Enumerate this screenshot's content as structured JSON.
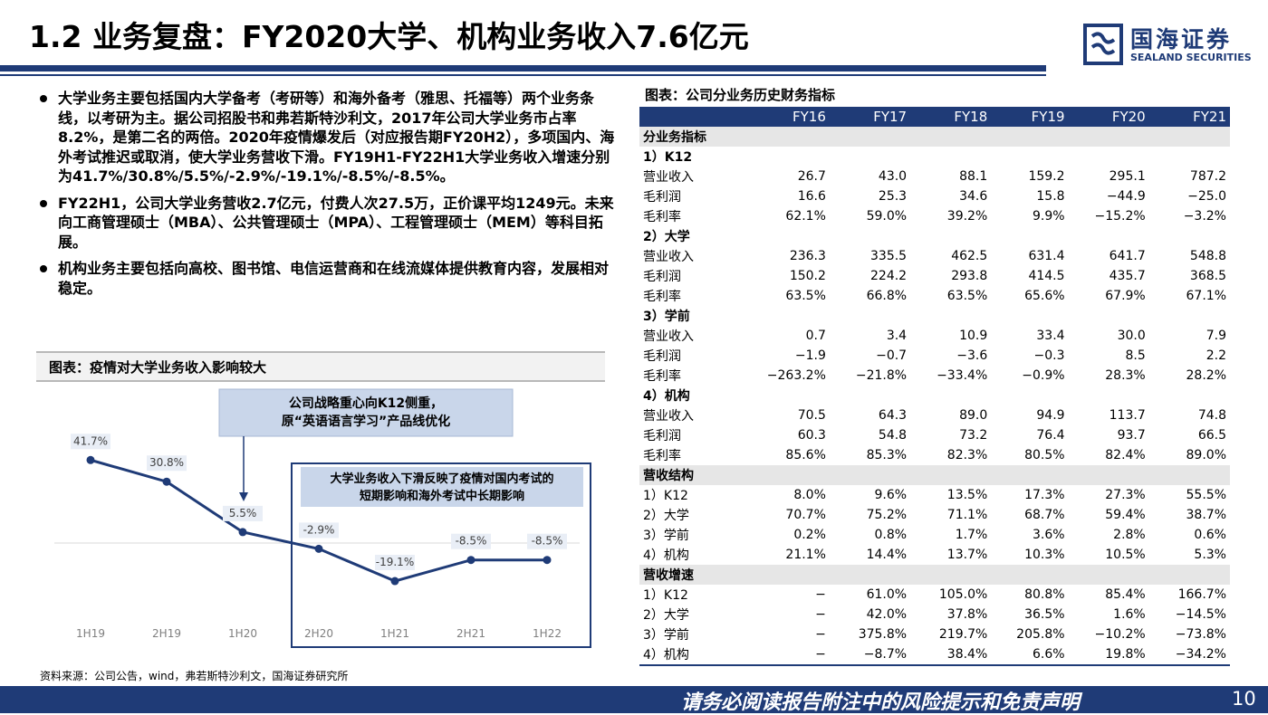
{
  "header": {
    "title": "1.2 业务复盘：FY2020大学、机构业务收入7.6亿元",
    "logo_cn": "国海证券",
    "logo_en": "SEALAND SECURITIES"
  },
  "bullets": [
    "大学业务主要包括国内大学备考（考研等）和海外备考（雅思、托福等）两个业务条线，以考研为主。据公司招股书和弗若斯特沙利文，2017年公司大学业务市占率8.2%，是第二名的两倍。2020年疫情爆发后（对应报告期FY20H2），多项国内、海外考试推迟或取消，使大学业务营收下滑。FY19H1-FY22H1大学业务收入增速分别为41.7%/30.8%/5.5%/-2.9%/-19.1%/-8.5%/-8.5%。",
    "FY22H1，公司大学业务营收2.7亿元，付费人次27.5万，正价课平均1249元。未来向工商管理硕士（MBA）、公共管理硕士（MPA）、工程管理硕士（MEM）等科目拓展。",
    "机构业务主要包括向高校、图书馆、电信运营商和在线流媒体提供教育内容，发展相对稳定。"
  ],
  "chart": {
    "heading": "图表：疫情对大学业务收入影响较大",
    "callout1": [
      "公司战略重心向K12侧重，",
      "原“英语语言学习”产品线优化"
    ],
    "callout2": [
      "大学业务收入下滑反映了疫情对国内考试的",
      "短期影响和海外考试中长期影响"
    ],
    "source": "资料来源：公司公告，wind，弗若斯特沙利文，国海证券研究所"
  },
  "chart_data": {
    "type": "line",
    "categories": [
      "1H19",
      "2H19",
      "1H20",
      "2H20",
      "1H21",
      "2H21",
      "1H22"
    ],
    "values": [
      41.7,
      30.8,
      5.5,
      -2.9,
      -19.1,
      -8.5,
      -8.5
    ],
    "labels": [
      "41.7%",
      "30.8%",
      "5.5%",
      "-2.9%",
      "-19.1%",
      "-8.5%",
      "-8.5%"
    ],
    "color": "#1f3b77"
  },
  "table": {
    "title": "图表：公司分业务历史财务指标",
    "columns": [
      "FY16",
      "FY17",
      "FY18",
      "FY19",
      "FY20",
      "FY21"
    ],
    "rows": [
      {
        "kind": "section",
        "label": "分业务指标",
        "values": []
      },
      {
        "kind": "sub",
        "label": "1）K12",
        "values": []
      },
      {
        "kind": "data",
        "label": "营业收入",
        "values": [
          "26.7",
          "43.0",
          "88.1",
          "159.2",
          "295.1",
          "787.2"
        ]
      },
      {
        "kind": "data",
        "label": "毛利润",
        "values": [
          "16.6",
          "25.3",
          "34.6",
          "15.8",
          "−44.9",
          "−25.0"
        ]
      },
      {
        "kind": "data",
        "label": "毛利率",
        "values": [
          "62.1%",
          "59.0%",
          "39.2%",
          "9.9%",
          "−15.2%",
          "−3.2%"
        ]
      },
      {
        "kind": "sub",
        "label": "2）大学",
        "values": []
      },
      {
        "kind": "data",
        "label": "营业收入",
        "values": [
          "236.3",
          "335.5",
          "462.5",
          "631.4",
          "641.7",
          "548.8"
        ]
      },
      {
        "kind": "data",
        "label": "毛利润",
        "values": [
          "150.2",
          "224.2",
          "293.8",
          "414.5",
          "435.7",
          "368.5"
        ]
      },
      {
        "kind": "data",
        "label": "毛利率",
        "values": [
          "63.5%",
          "66.8%",
          "63.5%",
          "65.6%",
          "67.9%",
          "67.1%"
        ]
      },
      {
        "kind": "sub",
        "label": "3）学前",
        "values": []
      },
      {
        "kind": "data",
        "label": "营业收入",
        "values": [
          "0.7",
          "3.4",
          "10.9",
          "33.4",
          "30.0",
          "7.9"
        ]
      },
      {
        "kind": "data",
        "label": "毛利润",
        "values": [
          "−1.9",
          "−0.7",
          "−3.6",
          "−0.3",
          "8.5",
          "2.2"
        ]
      },
      {
        "kind": "data",
        "label": "毛利率",
        "values": [
          "−263.2%",
          "−21.8%",
          "−33.4%",
          "−0.9%",
          "28.3%",
          "28.2%"
        ]
      },
      {
        "kind": "sub",
        "label": "4）机构",
        "values": []
      },
      {
        "kind": "data",
        "label": "营业收入",
        "values": [
          "70.5",
          "64.3",
          "89.0",
          "94.9",
          "113.7",
          "74.8"
        ]
      },
      {
        "kind": "data",
        "label": "毛利润",
        "values": [
          "60.3",
          "54.8",
          "73.2",
          "76.4",
          "93.7",
          "66.5"
        ]
      },
      {
        "kind": "data",
        "label": "毛利率",
        "values": [
          "85.6%",
          "85.3%",
          "82.3%",
          "80.5%",
          "82.4%",
          "89.0%"
        ]
      },
      {
        "kind": "section",
        "label": "营收结构",
        "values": []
      },
      {
        "kind": "data",
        "label": "1）K12",
        "values": [
          "8.0%",
          "9.6%",
          "13.5%",
          "17.3%",
          "27.3%",
          "55.5%"
        ]
      },
      {
        "kind": "data",
        "label": "2）大学",
        "values": [
          "70.7%",
          "75.2%",
          "71.1%",
          "68.7%",
          "59.4%",
          "38.7%"
        ]
      },
      {
        "kind": "data",
        "label": "3）学前",
        "values": [
          "0.2%",
          "0.8%",
          "1.7%",
          "3.6%",
          "2.8%",
          "0.6%"
        ]
      },
      {
        "kind": "data",
        "label": "4）机构",
        "values": [
          "21.1%",
          "14.4%",
          "13.7%",
          "10.3%",
          "10.5%",
          "5.3%"
        ]
      },
      {
        "kind": "section",
        "label": "营收增速",
        "values": []
      },
      {
        "kind": "data",
        "label": "1）K12",
        "values": [
          "−",
          "61.0%",
          "105.0%",
          "80.8%",
          "85.4%",
          "166.7%"
        ]
      },
      {
        "kind": "data",
        "label": "2）大学",
        "values": [
          "−",
          "42.0%",
          "37.8%",
          "36.5%",
          "1.6%",
          "−14.5%"
        ]
      },
      {
        "kind": "data",
        "label": "3）学前",
        "values": [
          "−",
          "375.8%",
          "219.7%",
          "205.8%",
          "−10.2%",
          "−73.8%"
        ]
      },
      {
        "kind": "data",
        "label": "4）机构",
        "values": [
          "−",
          "−8.7%",
          "38.4%",
          "6.6%",
          "19.8%",
          "−34.2%"
        ]
      }
    ]
  },
  "footer": {
    "disclaimer": "请务必阅读报告附注中的风险提示和免责声明",
    "page": "10"
  }
}
